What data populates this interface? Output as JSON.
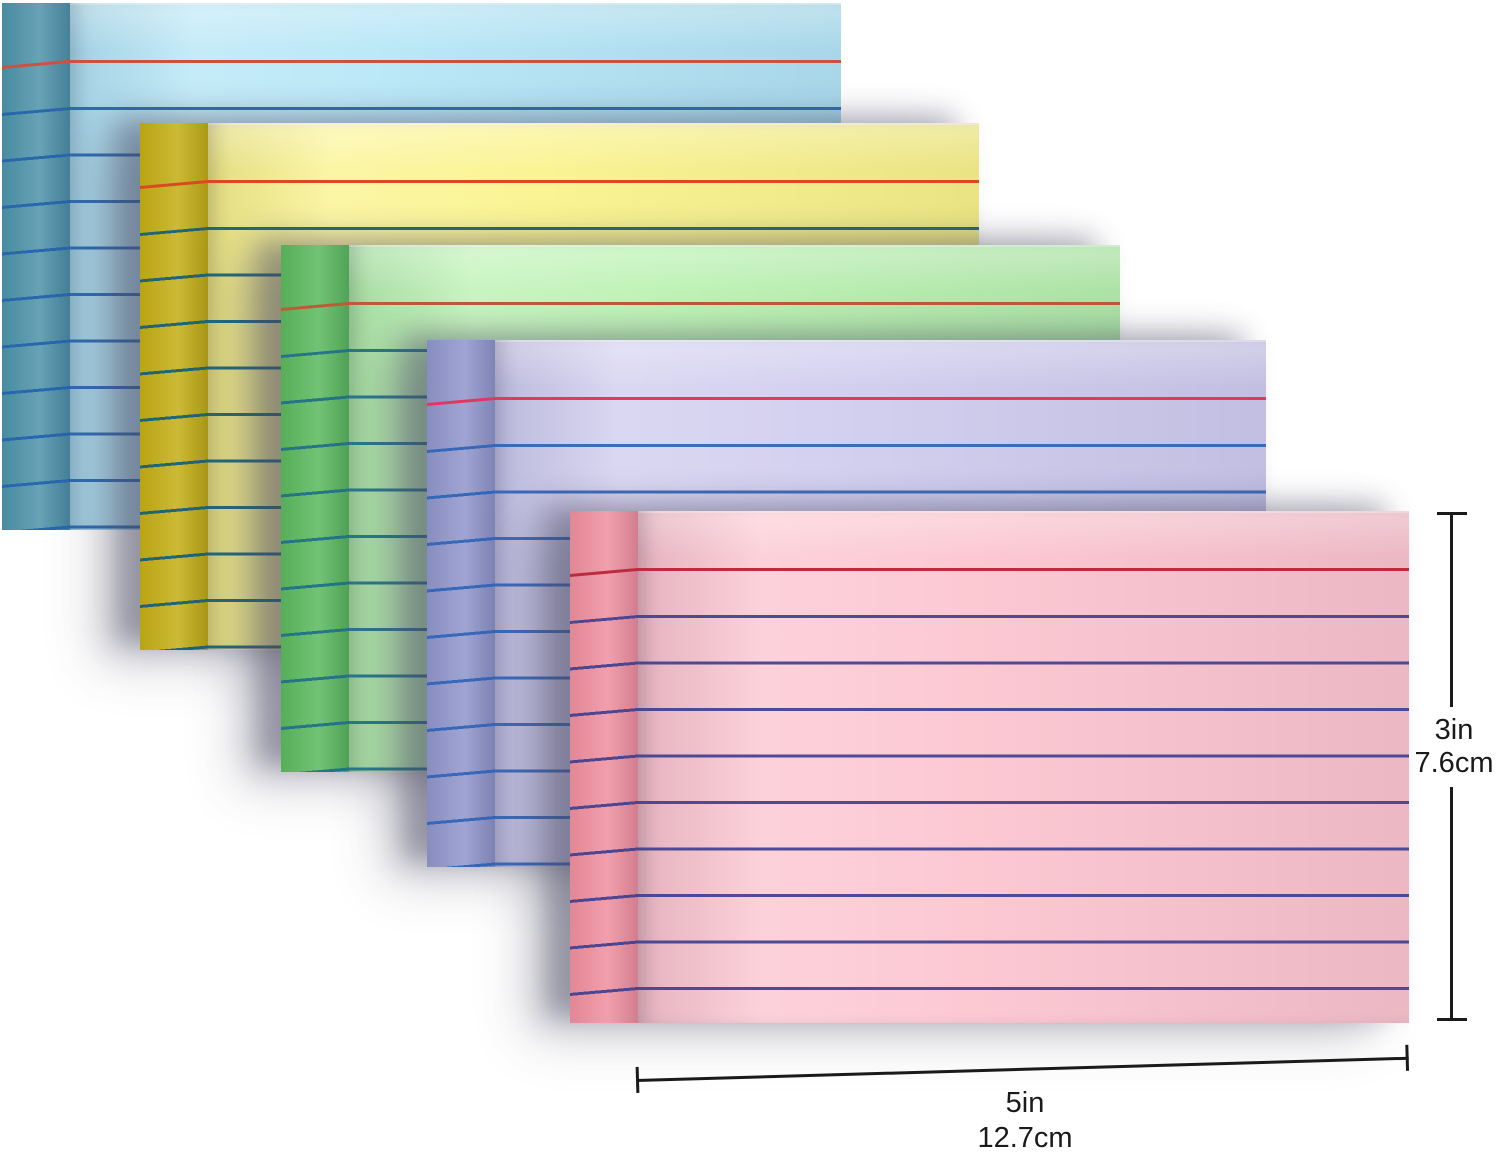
{
  "stacks": [
    {
      "name": "blue",
      "front_color": "#b3e5f6",
      "side_color": "#4e93a9",
      "rule_line_color": "#2563ae",
      "headline_color": "#cb5240"
    },
    {
      "name": "yellow",
      "front_color": "#faf389",
      "side_color": "#c4ae14",
      "rule_line_color": "#135e7a",
      "headline_color": "#da4a20"
    },
    {
      "name": "green",
      "front_color": "#b7f1ad",
      "side_color": "#5bb95e",
      "rule_line_color": "#1f6f8a",
      "headline_color": "#c05a36"
    },
    {
      "name": "purple",
      "front_color": "#cfcbee",
      "side_color": "#9096cb",
      "rule_line_color": "#2f63b8",
      "headline_color": "#dd3a62"
    },
    {
      "name": "pink",
      "front_color": "#fcc3ce",
      "side_color": "#ef8f9f",
      "rule_line_color": "#3f3f90",
      "headline_color": "#bb2c3e"
    }
  ],
  "measurements": {
    "annotation_color": "#1a1a1a",
    "height": {
      "inches": "3in",
      "metric": "7.6cm"
    },
    "width": {
      "inches": "5in",
      "metric": "12.7cm"
    }
  }
}
